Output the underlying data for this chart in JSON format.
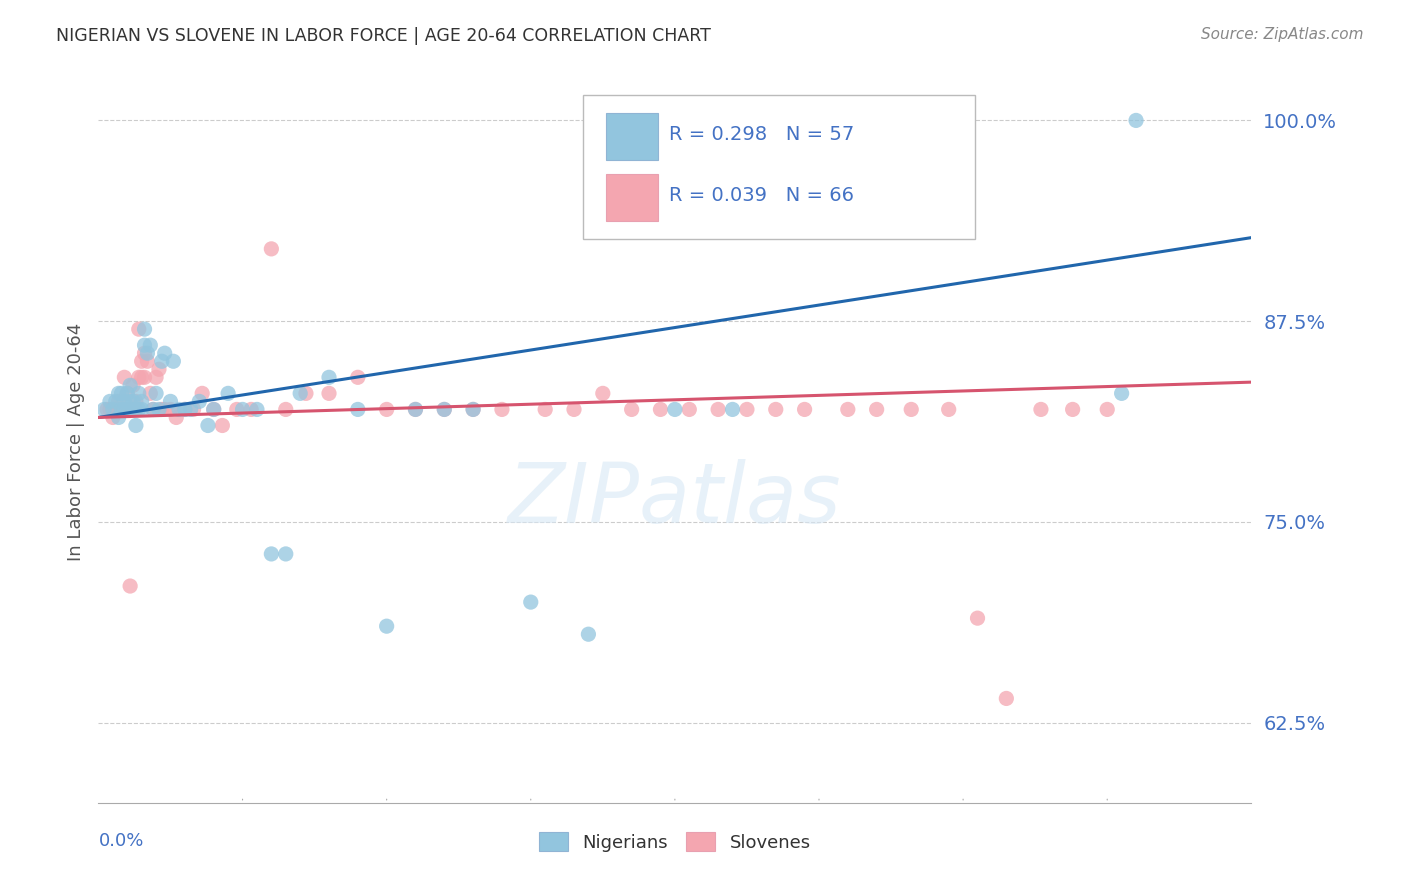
{
  "title": "NIGERIAN VS SLOVENE IN LABOR FORCE | AGE 20-64 CORRELATION CHART",
  "source": "Source: ZipAtlas.com",
  "ylabel": "In Labor Force | Age 20-64",
  "xlim": [
    0.0,
    0.4
  ],
  "ylim": [
    0.575,
    1.025
  ],
  "yticks": [
    0.625,
    0.75,
    0.875,
    1.0
  ],
  "ytick_labels": [
    "62.5%",
    "75.0%",
    "87.5%",
    "100.0%"
  ],
  "nigerian_color": "#92c5de",
  "slovene_color": "#f4a6b0",
  "regression_nigerian_color": "#2166ac",
  "regression_slovene_color": "#d6546e",
  "R_nigerian": 0.298,
  "N_nigerian": 57,
  "R_slovene": 0.039,
  "N_slovene": 66,
  "background_color": "#ffffff",
  "grid_color": "#cccccc",
  "axis_label_color": "#4472c4",
  "nigerian_x": [
    0.002,
    0.004,
    0.005,
    0.006,
    0.007,
    0.007,
    0.008,
    0.008,
    0.009,
    0.009,
    0.01,
    0.01,
    0.011,
    0.011,
    0.012,
    0.012,
    0.013,
    0.013,
    0.014,
    0.014,
    0.015,
    0.015,
    0.016,
    0.016,
    0.017,
    0.018,
    0.019,
    0.02,
    0.021,
    0.022,
    0.023,
    0.025,
    0.026,
    0.028,
    0.03,
    0.032,
    0.035,
    0.038,
    0.04,
    0.045,
    0.05,
    0.055,
    0.06,
    0.065,
    0.07,
    0.08,
    0.09,
    0.1,
    0.11,
    0.12,
    0.13,
    0.15,
    0.17,
    0.2,
    0.22,
    0.355,
    0.36
  ],
  "nigerian_y": [
    0.82,
    0.825,
    0.82,
    0.825,
    0.83,
    0.815,
    0.82,
    0.83,
    0.82,
    0.825,
    0.82,
    0.83,
    0.825,
    0.835,
    0.82,
    0.825,
    0.82,
    0.81,
    0.82,
    0.83,
    0.82,
    0.825,
    0.86,
    0.87,
    0.855,
    0.86,
    0.82,
    0.83,
    0.82,
    0.85,
    0.855,
    0.825,
    0.85,
    0.82,
    0.82,
    0.82,
    0.825,
    0.81,
    0.82,
    0.83,
    0.82,
    0.82,
    0.73,
    0.73,
    0.83,
    0.84,
    0.82,
    0.685,
    0.82,
    0.82,
    0.82,
    0.7,
    0.68,
    0.82,
    0.82,
    0.83,
    1.0
  ],
  "slovene_x": [
    0.003,
    0.004,
    0.005,
    0.006,
    0.007,
    0.008,
    0.009,
    0.01,
    0.01,
    0.011,
    0.011,
    0.012,
    0.012,
    0.013,
    0.013,
    0.014,
    0.014,
    0.015,
    0.015,
    0.016,
    0.016,
    0.017,
    0.018,
    0.019,
    0.02,
    0.021,
    0.022,
    0.023,
    0.025,
    0.027,
    0.03,
    0.033,
    0.036,
    0.04,
    0.043,
    0.048,
    0.053,
    0.06,
    0.065,
    0.072,
    0.08,
    0.09,
    0.1,
    0.11,
    0.12,
    0.13,
    0.14,
    0.155,
    0.165,
    0.175,
    0.185,
    0.195,
    0.205,
    0.215,
    0.225,
    0.235,
    0.245,
    0.26,
    0.27,
    0.282,
    0.295,
    0.305,
    0.315,
    0.327,
    0.338,
    0.35
  ],
  "slovene_y": [
    0.82,
    0.82,
    0.815,
    0.82,
    0.825,
    0.82,
    0.84,
    0.82,
    0.83,
    0.82,
    0.71,
    0.82,
    0.835,
    0.825,
    0.82,
    0.84,
    0.87,
    0.85,
    0.84,
    0.855,
    0.84,
    0.85,
    0.83,
    0.82,
    0.84,
    0.845,
    0.82,
    0.82,
    0.82,
    0.815,
    0.82,
    0.82,
    0.83,
    0.82,
    0.81,
    0.82,
    0.82,
    0.92,
    0.82,
    0.83,
    0.83,
    0.84,
    0.82,
    0.82,
    0.82,
    0.82,
    0.82,
    0.82,
    0.82,
    0.83,
    0.82,
    0.82,
    0.82,
    0.82,
    0.82,
    0.82,
    0.82,
    0.82,
    0.82,
    0.82,
    0.82,
    0.69,
    0.64,
    0.82,
    0.82,
    0.82
  ]
}
